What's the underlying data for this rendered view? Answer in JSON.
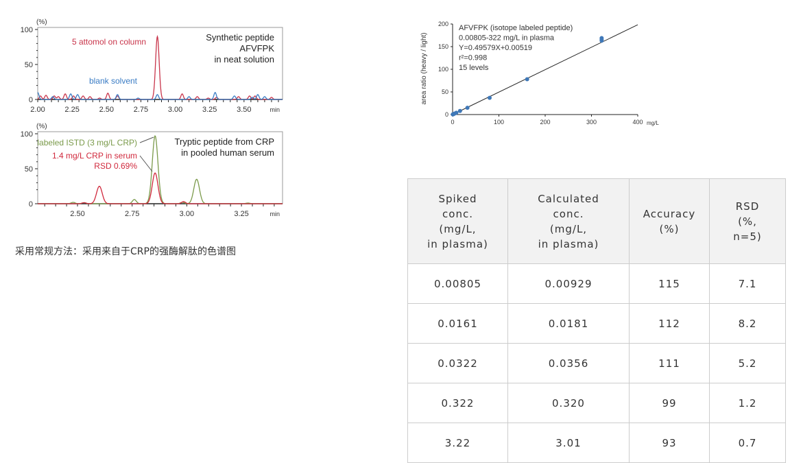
{
  "caption": "采用常规方法：采用来自于CRP的强酶解肽的色谱图",
  "chart_data": [
    {
      "type": "line",
      "ylabel": "(%)",
      "xlabel": "min",
      "xlim": [
        2.0,
        3.78
      ],
      "ylim": [
        0,
        100
      ],
      "xticks": [
        "2.00",
        "2.25",
        "2.50",
        "2.75",
        "3.00",
        "3.25",
        "3.50"
      ],
      "yticks": [
        "0",
        "50",
        "100"
      ],
      "title_lines": [
        "Synthetic peptide",
        "AFVFPK",
        "in neat solution"
      ],
      "series": [
        {
          "name": "5 attomol on column",
          "color": "#c8344a",
          "peaks": [
            [
              2.02,
              5
            ],
            [
              2.06,
              6
            ],
            [
              2.12,
              5
            ],
            [
              2.15,
              4
            ],
            [
              2.2,
              8
            ],
            [
              2.26,
              5
            ],
            [
              2.33,
              5
            ],
            [
              2.38,
              4
            ],
            [
              2.45,
              2
            ],
            [
              2.51,
              9
            ],
            [
              2.58,
              5
            ],
            [
              2.87,
              90
            ],
            [
              3.05,
              8
            ],
            [
              3.16,
              4
            ],
            [
              3.24,
              2
            ],
            [
              3.3,
              3
            ],
            [
              3.46,
              4
            ],
            [
              3.54,
              5
            ],
            [
              3.58,
              5
            ],
            [
              3.7,
              3
            ]
          ]
        },
        {
          "name": "blank solvent",
          "color": "#3a7cc4",
          "peaks": [
            [
              2.0,
              10
            ],
            [
              2.11,
              4
            ],
            [
              2.24,
              8
            ],
            [
              2.29,
              7
            ],
            [
              2.58,
              7
            ],
            [
              2.73,
              2
            ],
            [
              2.87,
              7
            ],
            [
              3.1,
              4
            ],
            [
              3.29,
              10
            ],
            [
              3.43,
              5
            ],
            [
              3.56,
              3
            ],
            [
              3.6,
              7
            ],
            [
              3.65,
              4
            ]
          ]
        }
      ]
    },
    {
      "type": "line",
      "ylabel": "(%)",
      "xlabel": "min",
      "xlim": [
        2.318,
        3.438
      ],
      "ylim": [
        0,
        100
      ],
      "xticks": [
        "2.50",
        "2.75",
        "3.00",
        "3.25"
      ],
      "yticks": [
        "0",
        "50",
        "100"
      ],
      "title_lines": [
        "Tryptic peptide from CRP",
        "in pooled human serum"
      ],
      "series": [
        {
          "name": "labeled ISTD (3 mg/L CRP)",
          "color": "#7a9a4a",
          "peaks": [
            [
              2.48,
              2
            ],
            [
              2.53,
              1.5
            ],
            [
              2.76,
              6
            ],
            [
              2.855,
              97
            ],
            [
              2.98,
              2
            ],
            [
              3.045,
              35
            ],
            [
              3.28,
              1
            ]
          ]
        },
        {
          "name": "1.4 mg/L CRP in serum",
          "note": "RSD 0.69%",
          "color": "#d0283c",
          "peaks": [
            [
              2.53,
              1.5
            ],
            [
              2.6,
              25
            ],
            [
              2.855,
              44
            ],
            [
              2.985,
              3
            ]
          ]
        }
      ]
    },
    {
      "type": "scatter",
      "ylabel": "area ratio (heavy / light)",
      "xlabel": "mg/L",
      "xlim": [
        0,
        400
      ],
      "ylim": [
        0,
        200
      ],
      "xticks": [
        "0",
        "100",
        "200",
        "300",
        "400"
      ],
      "yticks": [
        "0",
        "50",
        "100",
        "150",
        "200"
      ],
      "annotation": [
        "AFVFPK (isotope labeled peptide)",
        "0.00805-322 mg/L in plasma",
        "Y=0.49579X+0.00519",
        "r²=0.998",
        "15 levels"
      ],
      "fit": {
        "slope": 0.49579,
        "intercept": 0.00519
      },
      "color": "#3f78b8",
      "points": [
        [
          0.5,
          0.3
        ],
        [
          1,
          0.5
        ],
        [
          2,
          1
        ],
        [
          4,
          2
        ],
        [
          8,
          4
        ],
        [
          16,
          8
        ],
        [
          32,
          15
        ],
        [
          80,
          37
        ],
        [
          161,
          78
        ],
        [
          322,
          163
        ],
        [
          322,
          166
        ],
        [
          322,
          169
        ]
      ]
    }
  ],
  "table": {
    "headers": [
      "Spiked\nconc.\n(mg/L,\nin plasma)",
      "Calculated\nconc.\n(mg/L,\nin plasma)",
      "Accuracy\n(%)",
      "RSD\n(%,\nn=5)"
    ],
    "rows": [
      [
        "0.00805",
        "0.00929",
        "115",
        "7.1"
      ],
      [
        "0.0161",
        "0.0181",
        "112",
        "8.2"
      ],
      [
        "0.0322",
        "0.0356",
        "111",
        "5.2"
      ],
      [
        "0.322",
        "0.320",
        "99",
        "1.2"
      ],
      [
        "3.22",
        "3.01",
        "93",
        "0.7"
      ]
    ]
  }
}
